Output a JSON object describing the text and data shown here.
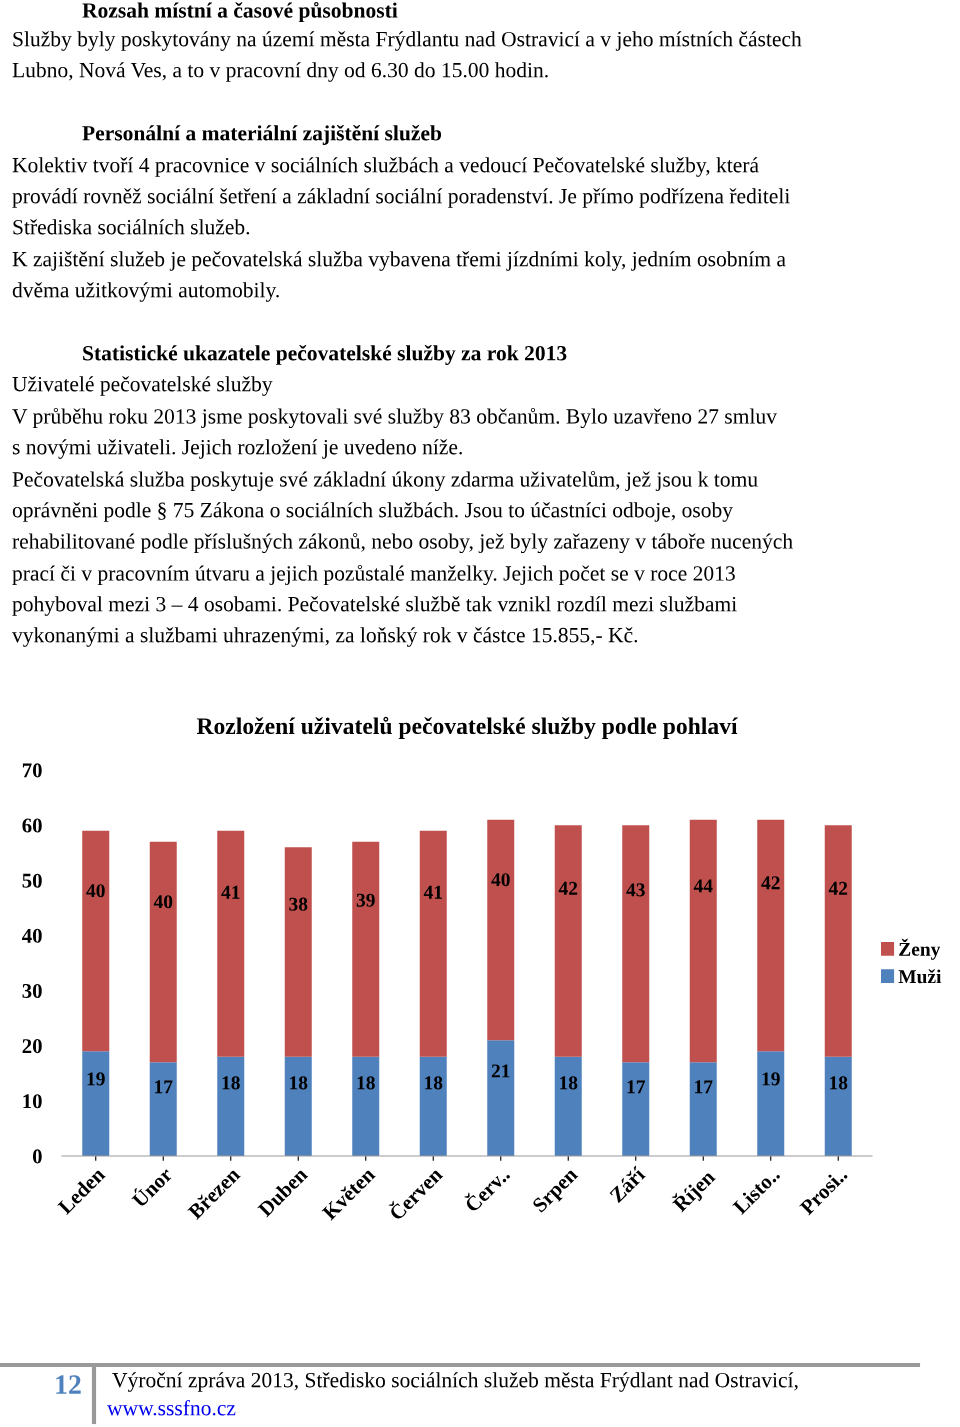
{
  "chart_data": {
    "type": "bar",
    "title": "Rozložení uživatelů pečovatelské služby podle pohlaví",
    "categories": [
      "Leden",
      "Únor",
      "Březen",
      "Duben",
      "Květen",
      "Červen",
      "Červ..",
      "Srpen",
      "Září",
      "Říjen",
      "Listo..",
      "Prosi.."
    ],
    "series": [
      {
        "name": "Muži",
        "color": "#4f81bd",
        "values": [
          19,
          17,
          18,
          18,
          18,
          18,
          21,
          18,
          17,
          17,
          19,
          18
        ]
      },
      {
        "name": "Ženy",
        "color": "#c0504d",
        "values": [
          40,
          40,
          41,
          38,
          39,
          41,
          40,
          42,
          43,
          44,
          42,
          42
        ]
      }
    ],
    "stacked": true,
    "data_labels": true,
    "ylim": [
      0,
      70
    ],
    "yticks": [
      0,
      10,
      20,
      30,
      40,
      50,
      60,
      70
    ],
    "grid": false,
    "legend": "right",
    "annotations": [
      "Rozsah místní a časové působnosti",
      "Služby byly poskytovány na území města Frýdlantu nad Ostravicí a v jeho místních částech",
      "Lubno, Nová Ves, a to v pracovní dny od 6.30 do 15.00 hodin.",
      "Personální a materiální zajištění služeb",
      "Kolektiv tvoří 4 pracovnice v sociálních službách a vedoucí Pečovatelské služby, která",
      "provádí rovněž sociální šetření a základní sociální poradenství. Je přímo podřízena řediteli",
      "Střediska sociálních služeb.",
      "K zajištění služeb je pečovatelská služba vybavena třemi jízdními koly, jedním osobním a",
      "dvěma užitkovými automobily.",
      "Statistické ukazatele pečovatelské služby za rok 2013",
      "Uživatelé pečovatelské služby",
      "V průběhu roku 2013 jsme poskytovali své služby 83 občanům. Bylo uzavřeno 27 smluv",
      "s novými uživateli. Jejich rozložení je uvedeno níže.",
      "Pečovatelská služba poskytuje své základní úkony zdarma uživatelům, jež jsou k tomu",
      "oprávněni podle § 75 Zákona o sociálních službách. Jsou to účastníci odboje, osoby",
      "rehabilitované podle příslušných zákonů, nebo osoby, jež byly zařazeny v táboře nucených",
      "prací či v pracovním útvaru a jejich pozůstalé manželky. Jejich počet se v roce 2013",
      "pohyboval mezi 3 – 4 osobami. Pečovatelské službě tak vznikl rozdíl mezi službami",
      "vykonanými a službami uhrazenými, za loňský rok v částce 15.855,- Kč.",
      "12",
      "Výroční zpráva 2013, Středisko sociálních služeb města Frýdlant nad Ostravicí,",
      "www.sssfno.cz"
    ]
  }
}
